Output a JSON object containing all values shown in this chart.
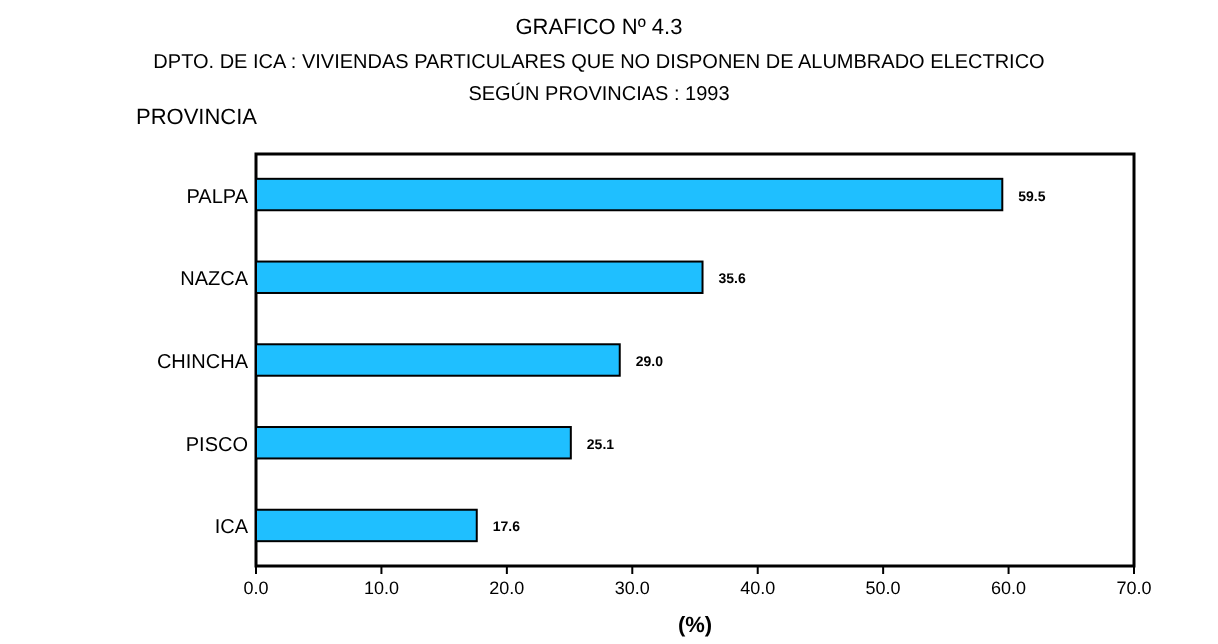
{
  "chart_data": {
    "type": "bar",
    "orientation": "horizontal",
    "title": "GRAFICO Nº 4.3",
    "subtitle": "DPTO. DE ICA : VIVIENDAS PARTICULARES QUE NO DISPONEN DE ALUMBRADO ELECTRICO\nSEGÚN PROVINCIAS : 1993",
    "ylabel": "PROVINCIA",
    "xlabel": "(%)",
    "categories": [
      "PALPA",
      "NAZCA",
      "CHINCHA",
      "PISCO",
      "ICA"
    ],
    "values": [
      59.5,
      35.6,
      29.0,
      25.1,
      17.6
    ],
    "value_labels": [
      "59.5",
      "35.6",
      "29.0",
      "25.1",
      "17.6"
    ],
    "color": "#1fbfff",
    "xlim": [
      0,
      70
    ],
    "xticks": [
      {
        "value": 0,
        "label": "0.0"
      },
      {
        "value": 10,
        "label": "10.0"
      },
      {
        "value": 20,
        "label": "20.0"
      },
      {
        "value": 30,
        "label": "30.0"
      },
      {
        "value": 40,
        "label": "40.0"
      },
      {
        "value": 50,
        "label": "50.0"
      },
      {
        "value": 60,
        "label": "60.0"
      },
      {
        "value": 70,
        "label": "70.0"
      }
    ],
    "grid": false
  }
}
